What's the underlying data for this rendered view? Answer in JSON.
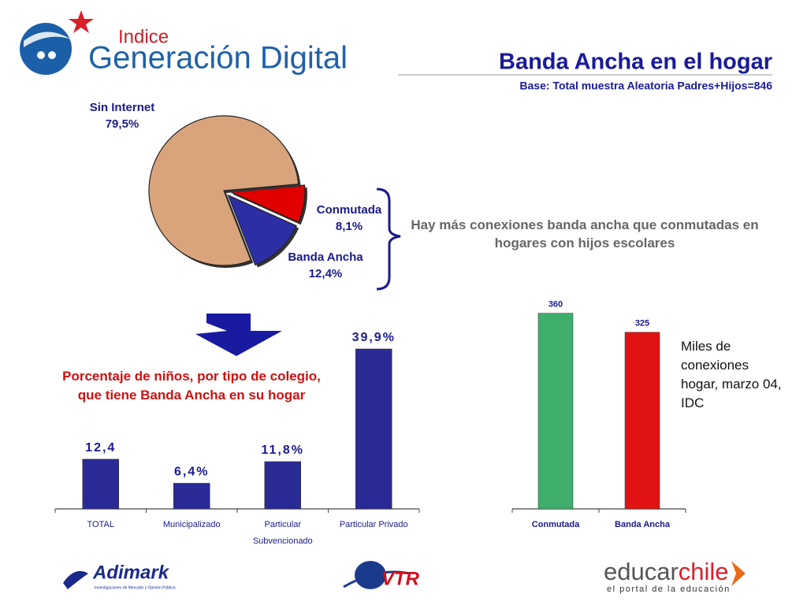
{
  "logos": {
    "top_small": "Indice",
    "top_large": "Generación Digital",
    "adimark": "Adimark",
    "adimark_sub": "Investigaciones de Mercado y Opinión Pública",
    "vtr": "VTR",
    "educar": "educar",
    "chile": "chile",
    "educar_sub": "el portal de la educación"
  },
  "chart_data": [
    {
      "type": "pie",
      "title": "Banda Ancha en el hogar",
      "subtitle": "Base: Total muestra Aleatoria Padres+Hijos=846",
      "annotation": "Hay más conexiones banda ancha que conmutadas en hogares con hijos escolares",
      "categories": [
        "Sin Internet",
        "Conmutada",
        "Banda Ancha"
      ],
      "values": [
        79.5,
        8.1,
        12.4
      ],
      "value_labels": [
        "79,5%",
        "8,1%",
        "12,4%"
      ],
      "colors": [
        "#d9a47c",
        "#e00000",
        "#2d2da6"
      ]
    },
    {
      "type": "bar",
      "title": "Porcentaje de niños, por tipo de colegio, que tiene Banda Ancha en su hogar",
      "categories": [
        "TOTAL",
        "Municipalizado",
        "Particular Subvencionado",
        "Particular Privado"
      ],
      "values": [
        12.4,
        6.4,
        11.8,
        39.9
      ],
      "value_labels": [
        "12,4",
        "6,4%",
        "11,8%",
        "39,9%"
      ],
      "color": "#2a2a96",
      "ylim": [
        0,
        45
      ]
    },
    {
      "type": "bar",
      "annotation": "Miles de conexiones hogar, marzo 04, IDC",
      "categories": [
        "Conmutada",
        "Banda Ancha"
      ],
      "values": [
        360,
        325
      ],
      "colors": [
        "#3fae6c",
        "#e01212"
      ],
      "ylim": [
        0,
        400
      ]
    }
  ]
}
